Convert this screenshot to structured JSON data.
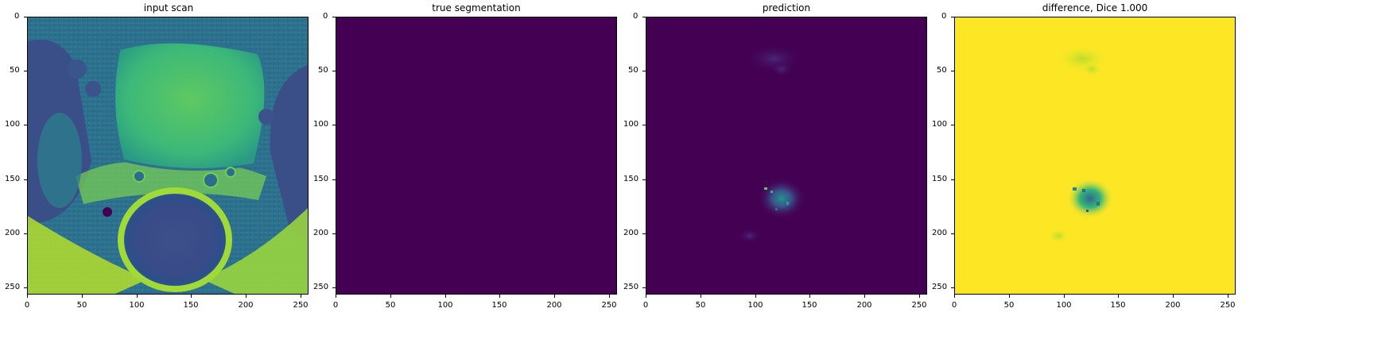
{
  "panels": [
    {
      "title": "input scan",
      "kind": "scan"
    },
    {
      "title": "true segmentation",
      "kind": "blank"
    },
    {
      "title": "prediction",
      "kind": "prediction"
    },
    {
      "title": "difference, Dice 1.000",
      "kind": "difference"
    }
  ],
  "x_ticks": [
    "0",
    "50",
    "100",
    "150",
    "200",
    "250"
  ],
  "y_ticks": [
    "0",
    "50",
    "100",
    "150",
    "200",
    "250"
  ],
  "axis_range": [
    0,
    256
  ],
  "colors": {
    "viridis_dark": "#440154",
    "viridis_blue": "#31688e",
    "viridis_teal": "#21918c",
    "viridis_green": "#35b779",
    "viridis_yellow": "#fde725"
  }
}
